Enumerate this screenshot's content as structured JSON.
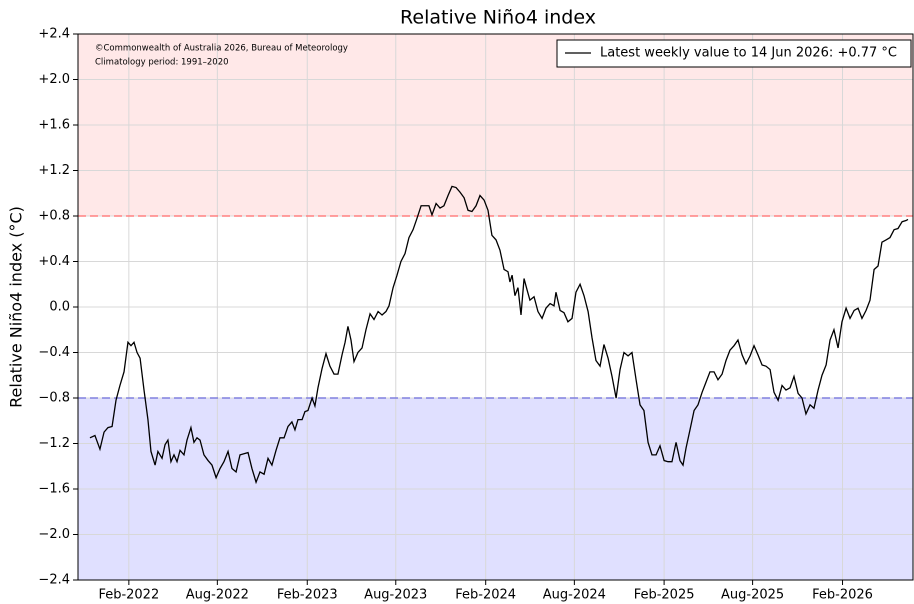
{
  "chart_data": {
    "type": "line",
    "title": "Relative Niño4 index",
    "y_label": "Relative Niño4 index (°C)",
    "annotations": [
      "©Commonwealth of Australia 2026, Bureau of Meteorology",
      "Climatology period: 1991–2020"
    ],
    "legend": "upper right",
    "grid": true,
    "xlim": [
      2021.8,
      2026.48
    ],
    "ylim": [
      -2.4,
      2.4
    ],
    "xticks": [
      {
        "value": 2022.085,
        "label": "Feb-2022"
      },
      {
        "value": 2022.581,
        "label": "Aug-2022"
      },
      {
        "value": 2023.085,
        "label": "Feb-2023"
      },
      {
        "value": 2023.581,
        "label": "Aug-2023"
      },
      {
        "value": 2024.085,
        "label": "Feb-2024"
      },
      {
        "value": 2024.582,
        "label": "Aug-2024"
      },
      {
        "value": 2025.085,
        "label": "Feb-2025"
      },
      {
        "value": 2025.581,
        "label": "Aug-2025"
      },
      {
        "value": 2026.085,
        "label": "Feb-2026"
      }
    ],
    "yticks": [
      {
        "value": 2.4,
        "label": "+2.4"
      },
      {
        "value": 2.0,
        "label": "+2.0"
      },
      {
        "value": 1.6,
        "label": "+1.6"
      },
      {
        "value": 1.2,
        "label": "+1.2"
      },
      {
        "value": 0.8,
        "label": "+0.8"
      },
      {
        "value": 0.4,
        "label": "+0.4"
      },
      {
        "value": 0,
        "label": "0.0"
      },
      {
        "value": -0.4,
        "label": "−0.4"
      },
      {
        "value": -0.8,
        "label": "−0.8"
      },
      {
        "value": -1.2,
        "label": "−1.2"
      },
      {
        "value": -1.6,
        "label": "−1.6"
      },
      {
        "value": -2.0,
        "label": "−2.0"
      },
      {
        "value": -2.4,
        "label": "−2.4"
      }
    ],
    "thresholds": [
      {
        "value": 0.8,
        "line_color": "#ff8080",
        "fill": "#ffe8e8",
        "shade": "above"
      },
      {
        "value": -0.8,
        "line_color": "#8080dd",
        "fill": "#e0e0ff",
        "shade": "below"
      }
    ],
    "x": [
      2021.867,
      2021.895,
      2021.923,
      2021.946,
      2021.968,
      2021.991,
      2022.013,
      2022.035,
      2022.058,
      2022.08,
      2022.097,
      2022.114,
      2022.131,
      2022.148,
      2022.17,
      2022.192,
      2022.209,
      2022.232,
      2022.248,
      2022.271,
      2022.288,
      2022.304,
      2022.321,
      2022.338,
      2022.355,
      2022.372,
      2022.394,
      2022.411,
      2022.433,
      2022.45,
      2022.467,
      2022.484,
      2022.506,
      2022.529,
      2022.551,
      2022.574,
      2022.596,
      2022.618,
      2022.641,
      2022.663,
      2022.686,
      2022.708,
      2022.73,
      2022.753,
      2022.775,
      2022.798,
      2022.82,
      2022.843,
      2022.865,
      2022.887,
      2022.91,
      2022.932,
      2022.955,
      2022.977,
      2022.999,
      2023.016,
      2023.033,
      2023.056,
      2023.072,
      2023.089,
      2023.112,
      2023.128,
      2023.145,
      2023.168,
      2023.19,
      2023.212,
      2023.235,
      2023.257,
      2023.28,
      2023.297,
      2023.313,
      2023.33,
      2023.347,
      2023.369,
      2023.392,
      2023.414,
      2023.437,
      2023.459,
      2023.482,
      2023.504,
      2023.526,
      2023.543,
      2023.566,
      2023.588,
      2023.61,
      2023.633,
      2023.655,
      2023.678,
      2023.7,
      2023.723,
      2023.745,
      2023.767,
      2023.784,
      2023.807,
      2023.829,
      2023.851,
      2023.874,
      2023.896,
      2023.919,
      2023.941,
      2023.964,
      2023.986,
      2024.008,
      2024.031,
      2024.053,
      2024.076,
      2024.098,
      2024.12,
      2024.143,
      2024.165,
      2024.188,
      2024.21,
      2024.221,
      2024.233,
      2024.249,
      2024.266,
      2024.283,
      2024.3,
      2024.317,
      2024.333,
      2024.356,
      2024.378,
      2024.401,
      2024.423,
      2024.446,
      2024.468,
      2024.479,
      2024.502,
      2024.524,
      2024.546,
      2024.569,
      2024.591,
      2024.614,
      2024.636,
      2024.659,
      2024.681,
      2024.703,
      2024.726,
      2024.748,
      2024.771,
      2024.793,
      2024.816,
      2024.838,
      2024.86,
      2024.883,
      2024.905,
      2024.928,
      2024.95,
      2024.972,
      2024.995,
      2025.017,
      2025.04,
      2025.062,
      2025.085,
      2025.107,
      2025.129,
      2025.152,
      2025.174,
      2025.191,
      2025.208,
      2025.23,
      2025.253,
      2025.275,
      2025.298,
      2025.32,
      2025.342,
      2025.365,
      2025.387,
      2025.41,
      2025.432,
      2025.454,
      2025.477,
      2025.499,
      2025.522,
      2025.544,
      2025.567,
      2025.589,
      2025.611,
      2025.634,
      2025.656,
      2025.679,
      2025.701,
      2025.724,
      2025.746,
      2025.768,
      2025.791,
      2025.813,
      2025.836,
      2025.858,
      2025.88,
      2025.903,
      2025.925,
      2025.948,
      2025.97,
      2025.993,
      2026.015,
      2026.037,
      2026.06,
      2026.082,
      2026.105,
      2026.127,
      2026.15,
      2026.172,
      2026.194,
      2026.217,
      2026.239,
      2026.262,
      2026.284,
      2026.306,
      2026.329,
      2026.351,
      2026.374,
      2026.396,
      2026.419,
      2026.441,
      2026.452
    ],
    "series": [
      {
        "name": "Latest weekly value to 14 Jun 2026: +0.77 °C",
        "color": "#000000",
        "values": [
          -1.15,
          -1.13,
          -1.25,
          -1.1,
          -1.06,
          -1.05,
          -0.82,
          -0.69,
          -0.57,
          -0.31,
          -0.34,
          -0.31,
          -0.4,
          -0.45,
          -0.73,
          -0.99,
          -1.27,
          -1.39,
          -1.27,
          -1.33,
          -1.21,
          -1.17,
          -1.36,
          -1.3,
          -1.36,
          -1.26,
          -1.3,
          -1.17,
          -1.06,
          -1.19,
          -1.15,
          -1.17,
          -1.3,
          -1.35,
          -1.39,
          -1.5,
          -1.42,
          -1.36,
          -1.27,
          -1.42,
          -1.45,
          -1.3,
          -1.29,
          -1.28,
          -1.42,
          -1.54,
          -1.45,
          -1.47,
          -1.33,
          -1.39,
          -1.26,
          -1.15,
          -1.15,
          -1.05,
          -1.01,
          -1.08,
          -0.99,
          -0.99,
          -0.92,
          -0.91,
          -0.8,
          -0.87,
          -0.71,
          -0.54,
          -0.41,
          -0.52,
          -0.59,
          -0.59,
          -0.42,
          -0.31,
          -0.17,
          -0.29,
          -0.48,
          -0.4,
          -0.36,
          -0.2,
          -0.06,
          -0.11,
          -0.04,
          -0.07,
          -0.04,
          0.01,
          0.17,
          0.28,
          0.4,
          0.47,
          0.61,
          0.68,
          0.78,
          0.89,
          0.89,
          0.89,
          0.81,
          0.91,
          0.87,
          0.89,
          0.98,
          1.06,
          1.05,
          1.01,
          0.96,
          0.85,
          0.84,
          0.89,
          0.98,
          0.94,
          0.85,
          0.63,
          0.59,
          0.5,
          0.33,
          0.31,
          0.22,
          0.28,
          0.1,
          0.17,
          -0.07,
          0.25,
          0.15,
          0.06,
          0.09,
          -0.04,
          -0.1,
          -0.01,
          0.03,
          0.01,
          0.13,
          -0.03,
          -0.05,
          -0.13,
          -0.1,
          0.13,
          0.2,
          0.1,
          -0.04,
          -0.27,
          -0.47,
          -0.52,
          -0.33,
          -0.45,
          -0.61,
          -0.8,
          -0.55,
          -0.4,
          -0.43,
          -0.4,
          -0.64,
          -0.86,
          -0.91,
          -1.19,
          -1.3,
          -1.3,
          -1.22,
          -1.35,
          -1.36,
          -1.36,
          -1.19,
          -1.35,
          -1.39,
          -1.24,
          -1.08,
          -0.91,
          -0.86,
          -0.75,
          -0.66,
          -0.57,
          -0.57,
          -0.64,
          -0.59,
          -0.47,
          -0.38,
          -0.34,
          -0.29,
          -0.42,
          -0.5,
          -0.43,
          -0.34,
          -0.42,
          -0.51,
          -0.52,
          -0.55,
          -0.75,
          -0.82,
          -0.69,
          -0.73,
          -0.71,
          -0.61,
          -0.76,
          -0.8,
          -0.94,
          -0.86,
          -0.89,
          -0.73,
          -0.6,
          -0.51,
          -0.29,
          -0.2,
          -0.36,
          -0.13,
          -0.01,
          -0.1,
          -0.03,
          -0.01,
          -0.1,
          -0.03,
          0.06,
          0.33,
          0.36,
          0.57,
          0.59,
          0.61,
          0.68,
          0.69,
          0.75,
          0.76,
          0.77
        ]
      }
    ]
  }
}
